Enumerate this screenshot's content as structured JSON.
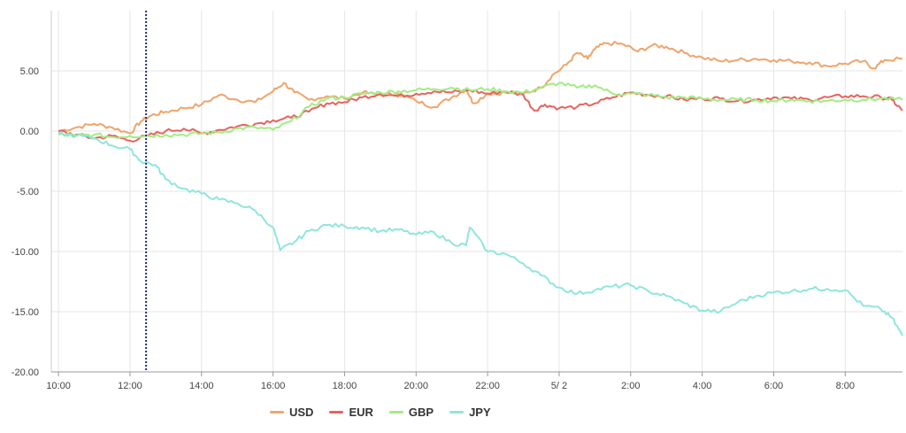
{
  "chart_data": {
    "type": "line",
    "title": "",
    "xlabel": "",
    "ylabel": "",
    "ylim": [
      -20,
      10
    ],
    "yticks": [
      5,
      0,
      -5,
      -10,
      -15,
      -20
    ],
    "ytick_labels": [
      "5.00",
      "0.00",
      "-5.00",
      "-10.00",
      "-15.00",
      "-20.00"
    ],
    "xlim": [
      9.8,
      33.6
    ],
    "xticks": [
      {
        "value": 10,
        "label": "10:00"
      },
      {
        "value": 12,
        "label": "12:00"
      },
      {
        "value": 14,
        "label": "14:00"
      },
      {
        "value": 16,
        "label": "16:00"
      },
      {
        "value": 18,
        "label": "18:00"
      },
      {
        "value": 20,
        "label": "20:00"
      },
      {
        "value": 22,
        "label": "22:00"
      },
      {
        "value": 24,
        "label": "5/ 2"
      },
      {
        "value": 26,
        "label": "2:00"
      },
      {
        "value": 28,
        "label": "4:00"
      },
      {
        "value": 30,
        "label": "6:00"
      },
      {
        "value": 32,
        "label": "8:00"
      }
    ],
    "grid": true,
    "legend_position": "bottom",
    "crosshair_x": 12.45,
    "series": [
      {
        "name": "USD",
        "color": "#f0a46b",
        "points": [
          [
            10,
            0
          ],
          [
            10.5,
            0.3
          ],
          [
            11,
            0.6
          ],
          [
            11.5,
            0.3
          ],
          [
            12,
            -0.2
          ],
          [
            12.3,
            0.8
          ],
          [
            12.6,
            1.3
          ],
          [
            13,
            1.6
          ],
          [
            13.5,
            1.9
          ],
          [
            14,
            2.2
          ],
          [
            14.5,
            3
          ],
          [
            15,
            2.6
          ],
          [
            15.5,
            2.4
          ],
          [
            16,
            3.3
          ],
          [
            16.3,
            4
          ],
          [
            16.6,
            3.2
          ],
          [
            17,
            2.6
          ],
          [
            17.5,
            2.9
          ],
          [
            18,
            2.7
          ],
          [
            18.5,
            3.2
          ],
          [
            19,
            3
          ],
          [
            19.5,
            3.1
          ],
          [
            20,
            2.5
          ],
          [
            20.5,
            2
          ],
          [
            21,
            2.8
          ],
          [
            21.4,
            3.5
          ],
          [
            21.6,
            2.3
          ],
          [
            22,
            3.1
          ],
          [
            22.5,
            3.2
          ],
          [
            23,
            3.1
          ],
          [
            23.5,
            3.6
          ],
          [
            23.8,
            4.6
          ],
          [
            24.2,
            5.5
          ],
          [
            24.5,
            6.5
          ],
          [
            24.8,
            6
          ],
          [
            25,
            6.8
          ],
          [
            25.3,
            7.3
          ],
          [
            25.8,
            7.2
          ],
          [
            26.2,
            6.6
          ],
          [
            26.6,
            7.1
          ],
          [
            27,
            7
          ],
          [
            27.5,
            6.5
          ],
          [
            28,
            6.1
          ],
          [
            28.5,
            5.8
          ],
          [
            29,
            5.9
          ],
          [
            29.5,
            6
          ],
          [
            30,
            5.9
          ],
          [
            30.5,
            5.8
          ],
          [
            31,
            5.7
          ],
          [
            31.5,
            5.4
          ],
          [
            32,
            5.6
          ],
          [
            32.5,
            5.8
          ],
          [
            32.8,
            5.2
          ],
          [
            33.1,
            5.9
          ],
          [
            33.6,
            6
          ]
        ]
      },
      {
        "name": "EUR",
        "color": "#e8635e",
        "points": [
          [
            10,
            0
          ],
          [
            10.5,
            -0.3
          ],
          [
            11,
            -0.6
          ],
          [
            11.5,
            -0.4
          ],
          [
            12,
            -0.8
          ],
          [
            12.5,
            -0.4
          ],
          [
            13,
            0
          ],
          [
            13.5,
            0.2
          ],
          [
            14,
            -0.2
          ],
          [
            14.5,
            0.1
          ],
          [
            15,
            0.4
          ],
          [
            15.5,
            0.6
          ],
          [
            16,
            0.9
          ],
          [
            16.5,
            1.1
          ],
          [
            17,
            1.6
          ],
          [
            17.5,
            2.3
          ],
          [
            18,
            2.4
          ],
          [
            18.5,
            2.8
          ],
          [
            19,
            3.1
          ],
          [
            19.5,
            2.9
          ],
          [
            20,
            3.1
          ],
          [
            20.5,
            3.3
          ],
          [
            21,
            3.2
          ],
          [
            21.5,
            3.4
          ],
          [
            22,
            3.1
          ],
          [
            22.5,
            3.3
          ],
          [
            23,
            3
          ],
          [
            23.3,
            1.7
          ],
          [
            23.6,
            2.2
          ],
          [
            24,
            1.9
          ],
          [
            24.5,
            2
          ],
          [
            25,
            2.3
          ],
          [
            25.5,
            2.8
          ],
          [
            26,
            3.2
          ],
          [
            26.5,
            3
          ],
          [
            27,
            2.9
          ],
          [
            27.5,
            2.6
          ],
          [
            28,
            2.7
          ],
          [
            28.5,
            2.7
          ],
          [
            29,
            2.5
          ],
          [
            29.5,
            2.6
          ],
          [
            30,
            2.8
          ],
          [
            30.5,
            2.7
          ],
          [
            31,
            2.6
          ],
          [
            31.5,
            2.8
          ],
          [
            32,
            2.9
          ],
          [
            32.5,
            2.9
          ],
          [
            33,
            2.8
          ],
          [
            33.3,
            2.6
          ],
          [
            33.6,
            1.7
          ]
        ]
      },
      {
        "name": "GBP",
        "color": "#a3ec84",
        "points": [
          [
            10,
            -0.3
          ],
          [
            10.5,
            -0.4
          ],
          [
            11,
            -0.3
          ],
          [
            11.5,
            -0.5
          ],
          [
            12,
            -0.4
          ],
          [
            12.5,
            -0.4
          ],
          [
            13,
            -0.3
          ],
          [
            13.5,
            -0.3
          ],
          [
            14,
            -0.2
          ],
          [
            14.5,
            -0.1
          ],
          [
            15,
            0.2
          ],
          [
            15.5,
            0.3
          ],
          [
            16,
            0.1
          ],
          [
            16.5,
            0.8
          ],
          [
            17,
            2
          ],
          [
            17.5,
            2.7
          ],
          [
            18,
            2.8
          ],
          [
            18.5,
            3.1
          ],
          [
            19,
            3.2
          ],
          [
            19.5,
            3.3
          ],
          [
            20,
            3.4
          ],
          [
            20.5,
            3.5
          ],
          [
            21,
            3.6
          ],
          [
            21.5,
            3.4
          ],
          [
            22,
            3.5
          ],
          [
            22.5,
            3.3
          ],
          [
            23,
            3.2
          ],
          [
            23.5,
            3.6
          ],
          [
            24,
            4
          ],
          [
            24.5,
            3.6
          ],
          [
            25,
            3.8
          ],
          [
            25.5,
            3.1
          ],
          [
            26,
            3.1
          ],
          [
            26.5,
            3
          ],
          [
            27,
            2.8
          ],
          [
            27.5,
            2.8
          ],
          [
            28,
            2.7
          ],
          [
            28.5,
            2.6
          ],
          [
            29,
            2.6
          ],
          [
            29.5,
            2.6
          ],
          [
            30,
            2.5
          ],
          [
            30.5,
            2.6
          ],
          [
            31,
            2.5
          ],
          [
            31.5,
            2.5
          ],
          [
            32,
            2.6
          ],
          [
            32.5,
            2.6
          ],
          [
            33,
            2.7
          ],
          [
            33.6,
            2.6
          ]
        ]
      },
      {
        "name": "JPY",
        "color": "#8fe6dc",
        "points": [
          [
            10,
            -0.2
          ],
          [
            10.5,
            -0.4
          ],
          [
            11,
            -0.6
          ],
          [
            11.5,
            -1.2
          ],
          [
            12,
            -1.5
          ],
          [
            12.3,
            -2.5
          ],
          [
            12.7,
            -2.8
          ],
          [
            13,
            -4
          ],
          [
            13.5,
            -4.8
          ],
          [
            14,
            -5.2
          ],
          [
            14.5,
            -5.7
          ],
          [
            15,
            -6
          ],
          [
            15.5,
            -6.6
          ],
          [
            16,
            -8
          ],
          [
            16.2,
            -9.9
          ],
          [
            16.6,
            -9.2
          ],
          [
            17,
            -8.3
          ],
          [
            17.5,
            -7.8
          ],
          [
            18,
            -7.9
          ],
          [
            18.5,
            -8
          ],
          [
            19,
            -8.3
          ],
          [
            19.5,
            -8.2
          ],
          [
            20,
            -8.6
          ],
          [
            20.5,
            -8.4
          ],
          [
            21,
            -9.3
          ],
          [
            21.4,
            -9.5
          ],
          [
            21.5,
            -8
          ],
          [
            22,
            -10
          ],
          [
            22.5,
            -10.2
          ],
          [
            23,
            -11
          ],
          [
            23.5,
            -12
          ],
          [
            24,
            -13
          ],
          [
            24.5,
            -13.5
          ],
          [
            25,
            -13.2
          ],
          [
            25.5,
            -12.9
          ],
          [
            26,
            -12.8
          ],
          [
            26.5,
            -13.3
          ],
          [
            27,
            -13.7
          ],
          [
            27.5,
            -14.3
          ],
          [
            28,
            -14.9
          ],
          [
            28.5,
            -15
          ],
          [
            29,
            -14.2
          ],
          [
            29.5,
            -13.7
          ],
          [
            30,
            -13.4
          ],
          [
            30.5,
            -13.3
          ],
          [
            31,
            -13.1
          ],
          [
            31.5,
            -13.1
          ],
          [
            32,
            -13.2
          ],
          [
            32.5,
            -14.5
          ],
          [
            33,
            -14.8
          ],
          [
            33.3,
            -15.5
          ],
          [
            33.6,
            -17
          ]
        ]
      }
    ]
  }
}
